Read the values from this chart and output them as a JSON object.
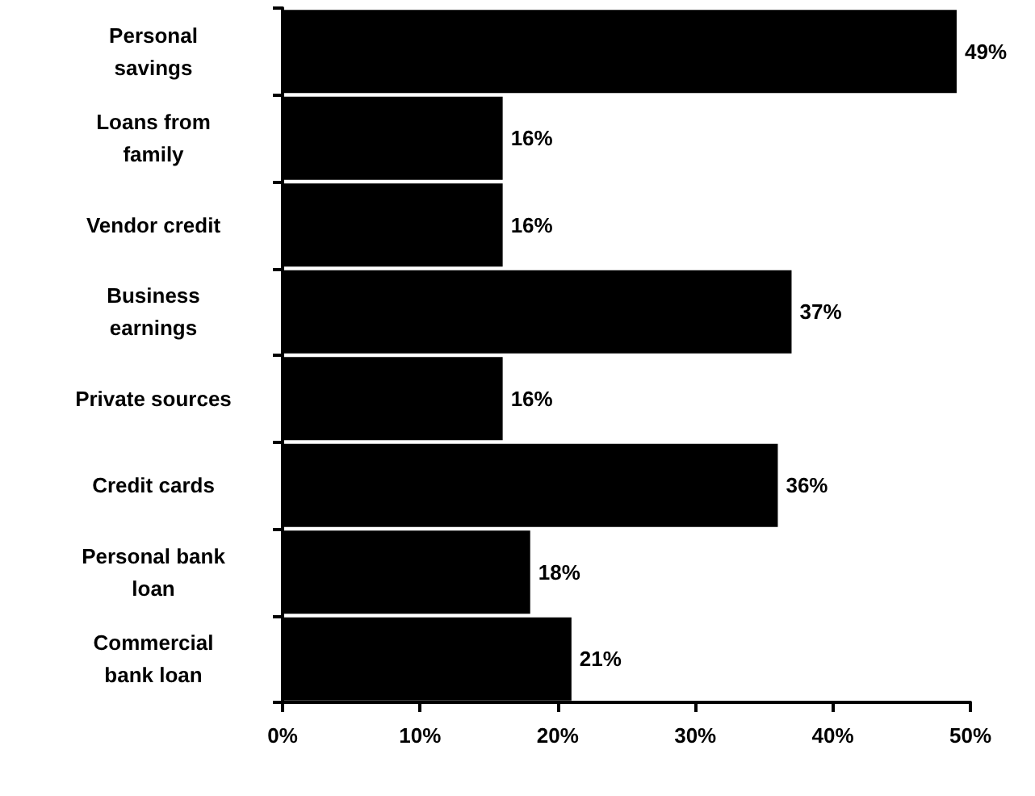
{
  "chart_data": {
    "type": "bar",
    "orientation": "horizontal",
    "categories": [
      "Personal\nsavings",
      "Loans from\nfamily",
      "Vendor credit",
      "Business\nearnings",
      "Private sources",
      "Credit cards",
      "Personal bank\nloan",
      "Commercial\nbank loan"
    ],
    "values": [
      49,
      16,
      16,
      37,
      16,
      36,
      18,
      21
    ],
    "value_labels": [
      "49%",
      "16%",
      "16%",
      "37%",
      "16%",
      "36%",
      "18%",
      "21%"
    ],
    "color": "#000000",
    "xlim": [
      0,
      50
    ],
    "xticks": [
      {
        "value": 0,
        "label": "0%"
      },
      {
        "value": 10,
        "label": "10%"
      },
      {
        "value": 20,
        "label": "20%"
      },
      {
        "value": 30,
        "label": "30%"
      },
      {
        "value": 40,
        "label": "40%"
      },
      {
        "value": 50,
        "label": "50%"
      }
    ],
    "grid": false
  }
}
